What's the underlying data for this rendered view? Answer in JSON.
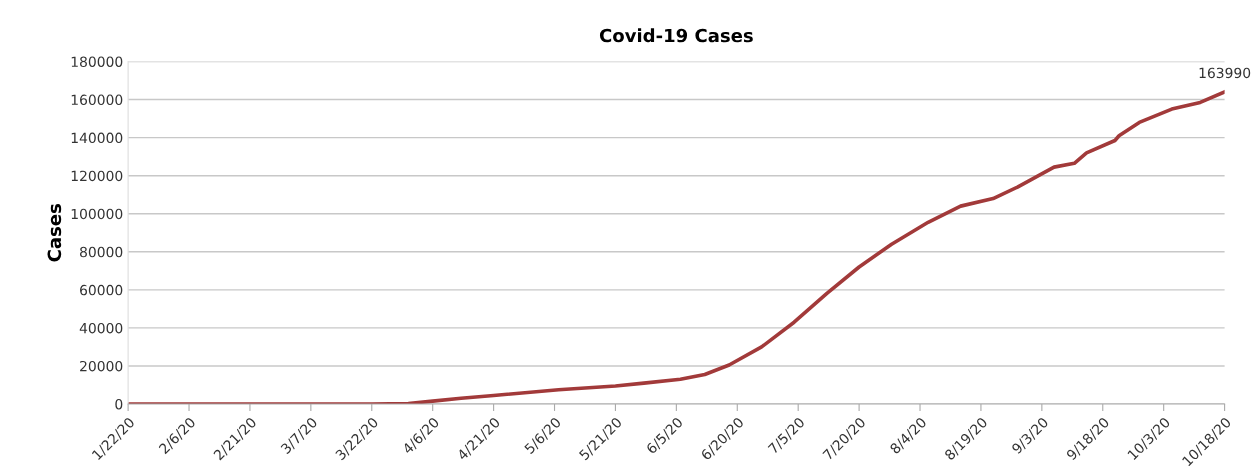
{
  "chart_data": {
    "type": "line",
    "title": "Covid-19 Cases",
    "ylabel": "Cases",
    "x": [
      "2020-01-22",
      "2020-03-22",
      "2020-03-31",
      "2020-04-06",
      "2020-04-13",
      "2020-04-21",
      "2020-05-07",
      "2020-05-21",
      "2020-05-28",
      "2020-06-06",
      "2020-06-12",
      "2020-06-18",
      "2020-06-26",
      "2020-07-04",
      "2020-07-12",
      "2020-07-20",
      "2020-07-28",
      "2020-08-06",
      "2020-08-14",
      "2020-08-22",
      "2020-08-28",
      "2020-09-06",
      "2020-09-11",
      "2020-09-14",
      "2020-09-21",
      "2020-09-22",
      "2020-09-27",
      "2020-10-05",
      "2020-10-12",
      "2020-10-18"
    ],
    "series": [
      {
        "color": "#a23a3a",
        "values": [
          0,
          0,
          300,
          1500,
          3000,
          4500,
          7500,
          9500,
          11000,
          13000,
          15500,
          20500,
          30000,
          43000,
          58000,
          72000,
          84000,
          95500,
          104000,
          108000,
          114000,
          124500,
          126500,
          132000,
          138500,
          141000,
          148000,
          155000,
          158500,
          163990
        ]
      }
    ],
    "annotations": [
      {
        "text": "163990",
        "x": "2020-10-18",
        "y": 163990
      }
    ],
    "xlim": [
      "2020-01-22",
      "2020-10-18"
    ],
    "xticks": [
      {
        "value": "2020-01-22",
        "label": "1/22/20"
      },
      {
        "value": "2020-02-06",
        "label": "2/6/20"
      },
      {
        "value": "2020-02-21",
        "label": "2/21/20"
      },
      {
        "value": "2020-03-07",
        "label": "3/7/20"
      },
      {
        "value": "2020-03-22",
        "label": "3/22/20"
      },
      {
        "value": "2020-04-06",
        "label": "4/6/20"
      },
      {
        "value": "2020-04-21",
        "label": "4/21/20"
      },
      {
        "value": "2020-05-06",
        "label": "5/6/20"
      },
      {
        "value": "2020-05-21",
        "label": "5/21/20"
      },
      {
        "value": "2020-06-05",
        "label": "6/5/20"
      },
      {
        "value": "2020-06-20",
        "label": "6/20/20"
      },
      {
        "value": "2020-07-05",
        "label": "7/5/20"
      },
      {
        "value": "2020-07-20",
        "label": "7/20/20"
      },
      {
        "value": "2020-08-04",
        "label": "8/4/20"
      },
      {
        "value": "2020-08-19",
        "label": "8/19/20"
      },
      {
        "value": "2020-09-03",
        "label": "9/3/20"
      },
      {
        "value": "2020-09-18",
        "label": "9/18/20"
      },
      {
        "value": "2020-10-03",
        "label": "10/3/20"
      },
      {
        "value": "2020-10-18",
        "label": "10/18/20"
      }
    ],
    "ylim": [
      0,
      180000
    ],
    "yticks": [
      0,
      20000,
      40000,
      60000,
      80000,
      100000,
      120000,
      140000,
      160000,
      180000
    ],
    "grid": "y",
    "legend": false,
    "marker": "none",
    "line_style": "solid"
  }
}
